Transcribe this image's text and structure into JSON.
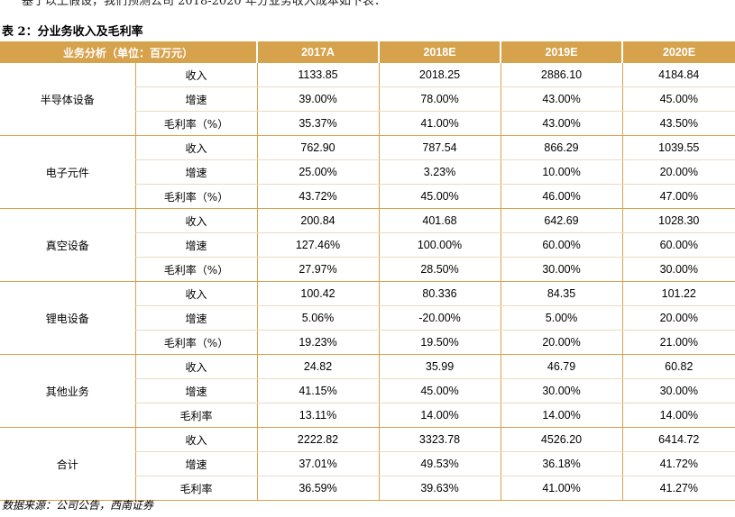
{
  "intro": "基于以上假设，我们预测公司 2018-2020 年分业务收入成本如下表：",
  "title": "表 2：分业务收入及毛利率",
  "table": {
    "header": [
      "业务分析（单位：百万元）",
      "2017A",
      "2018E",
      "2019E",
      "2020E"
    ],
    "groups": [
      {
        "name": "半导体设备",
        "rows": [
          {
            "metric": "收入",
            "values": [
              "1133.85",
              "2018.25",
              "2886.10",
              "4184.84"
            ]
          },
          {
            "metric": "增速",
            "values": [
              "39.00%",
              "78.00%",
              "43.00%",
              "45.00%"
            ]
          },
          {
            "metric": "毛利率（%）",
            "values": [
              "35.37%",
              "41.00%",
              "43.00%",
              "43.50%"
            ]
          }
        ]
      },
      {
        "name": "电子元件",
        "rows": [
          {
            "metric": "收入",
            "values": [
              "762.90",
              "787.54",
              "866.29",
              "1039.55"
            ]
          },
          {
            "metric": "增速",
            "values": [
              "25.00%",
              "3.23%",
              "10.00%",
              "20.00%"
            ]
          },
          {
            "metric": "毛利率（%）",
            "values": [
              "43.72%",
              "45.00%",
              "46.00%",
              "47.00%"
            ]
          }
        ]
      },
      {
        "name": "真空设备",
        "rows": [
          {
            "metric": "收入",
            "values": [
              "200.84",
              "401.68",
              "642.69",
              "1028.30"
            ]
          },
          {
            "metric": "增速",
            "values": [
              "127.46%",
              "100.00%",
              "60.00%",
              "60.00%"
            ]
          },
          {
            "metric": "毛利率（%）",
            "values": [
              "27.97%",
              "28.50%",
              "30.00%",
              "30.00%"
            ]
          }
        ]
      },
      {
        "name": "锂电设备",
        "rows": [
          {
            "metric": "收入",
            "values": [
              "100.42",
              "80.336",
              "84.35",
              "101.22"
            ]
          },
          {
            "metric": "增速",
            "values": [
              "5.06%",
              "-20.00%",
              "5.00%",
              "20.00%"
            ]
          },
          {
            "metric": "毛利率（%）",
            "values": [
              "19.23%",
              "19.50%",
              "20.00%",
              "21.00%"
            ]
          }
        ]
      },
      {
        "name": "其他业务",
        "rows": [
          {
            "metric": "收入",
            "values": [
              "24.82",
              "35.99",
              "46.79",
              "60.82"
            ]
          },
          {
            "metric": "增速",
            "values": [
              "41.15%",
              "45.00%",
              "30.00%",
              "30.00%"
            ]
          },
          {
            "metric": "毛利率",
            "values": [
              "13.11%",
              "14.00%",
              "14.00%",
              "14.00%"
            ]
          }
        ]
      },
      {
        "name": "合计",
        "rows": [
          {
            "metric": "收入",
            "values": [
              "2222.82",
              "3323.78",
              "4526.20",
              "6414.72"
            ]
          },
          {
            "metric": "增速",
            "values": [
              "37.01%",
              "49.53%",
              "36.18%",
              "41.72%"
            ]
          },
          {
            "metric": "毛利率",
            "values": [
              "36.59%",
              "39.63%",
              "41.00%",
              "41.27%"
            ]
          }
        ]
      }
    ]
  },
  "source": "数据来源：公司公告，西南证券"
}
